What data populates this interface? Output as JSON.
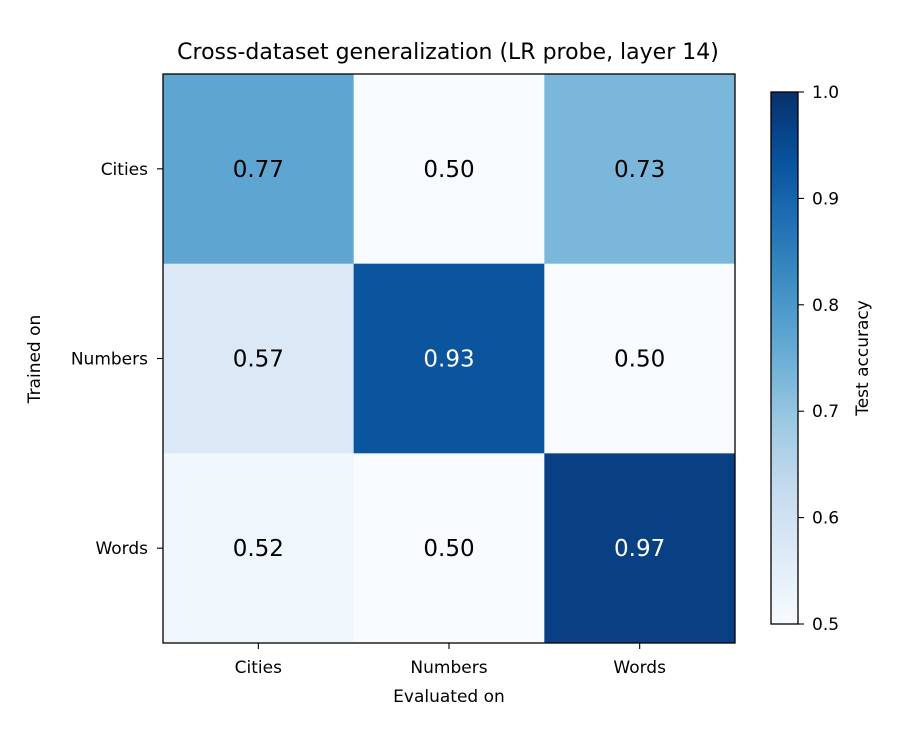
{
  "chart_data": {
    "type": "heatmap",
    "title": "Cross-dataset generalization (LR probe, layer 14)",
    "xlabel": "Evaluated on",
    "ylabel": "Trained on",
    "x_categories": [
      "Cities",
      "Numbers",
      "Words"
    ],
    "y_categories": [
      "Cities",
      "Numbers",
      "Words"
    ],
    "values": [
      [
        0.77,
        0.5,
        0.73
      ],
      [
        0.57,
        0.93,
        0.5
      ],
      [
        0.52,
        0.5,
        0.97
      ]
    ],
    "value_labels": [
      [
        "0.77",
        "0.50",
        "0.73"
      ],
      [
        "0.57",
        "0.93",
        "0.50"
      ],
      [
        "0.52",
        "0.50",
        "0.97"
      ]
    ],
    "colorbar": {
      "label": "Test accuracy",
      "range": [
        0.5,
        1.0
      ],
      "ticks": [
        0.5,
        0.6,
        0.7,
        0.8,
        0.9,
        1.0
      ],
      "tick_labels": [
        "0.5",
        "0.6",
        "0.7",
        "0.8",
        "0.9",
        "1.0"
      ],
      "colormap": "Blues"
    },
    "colormap_stops": [
      "#f7fbff",
      "#deebf7",
      "#c6dbef",
      "#9ecae1",
      "#6baed6",
      "#4292c6",
      "#2171b5",
      "#08519c",
      "#08306b"
    ],
    "light_text_threshold": 0.8,
    "text_colors": {
      "dark": "#000000",
      "light": "#ffffff"
    },
    "grid": false
  }
}
